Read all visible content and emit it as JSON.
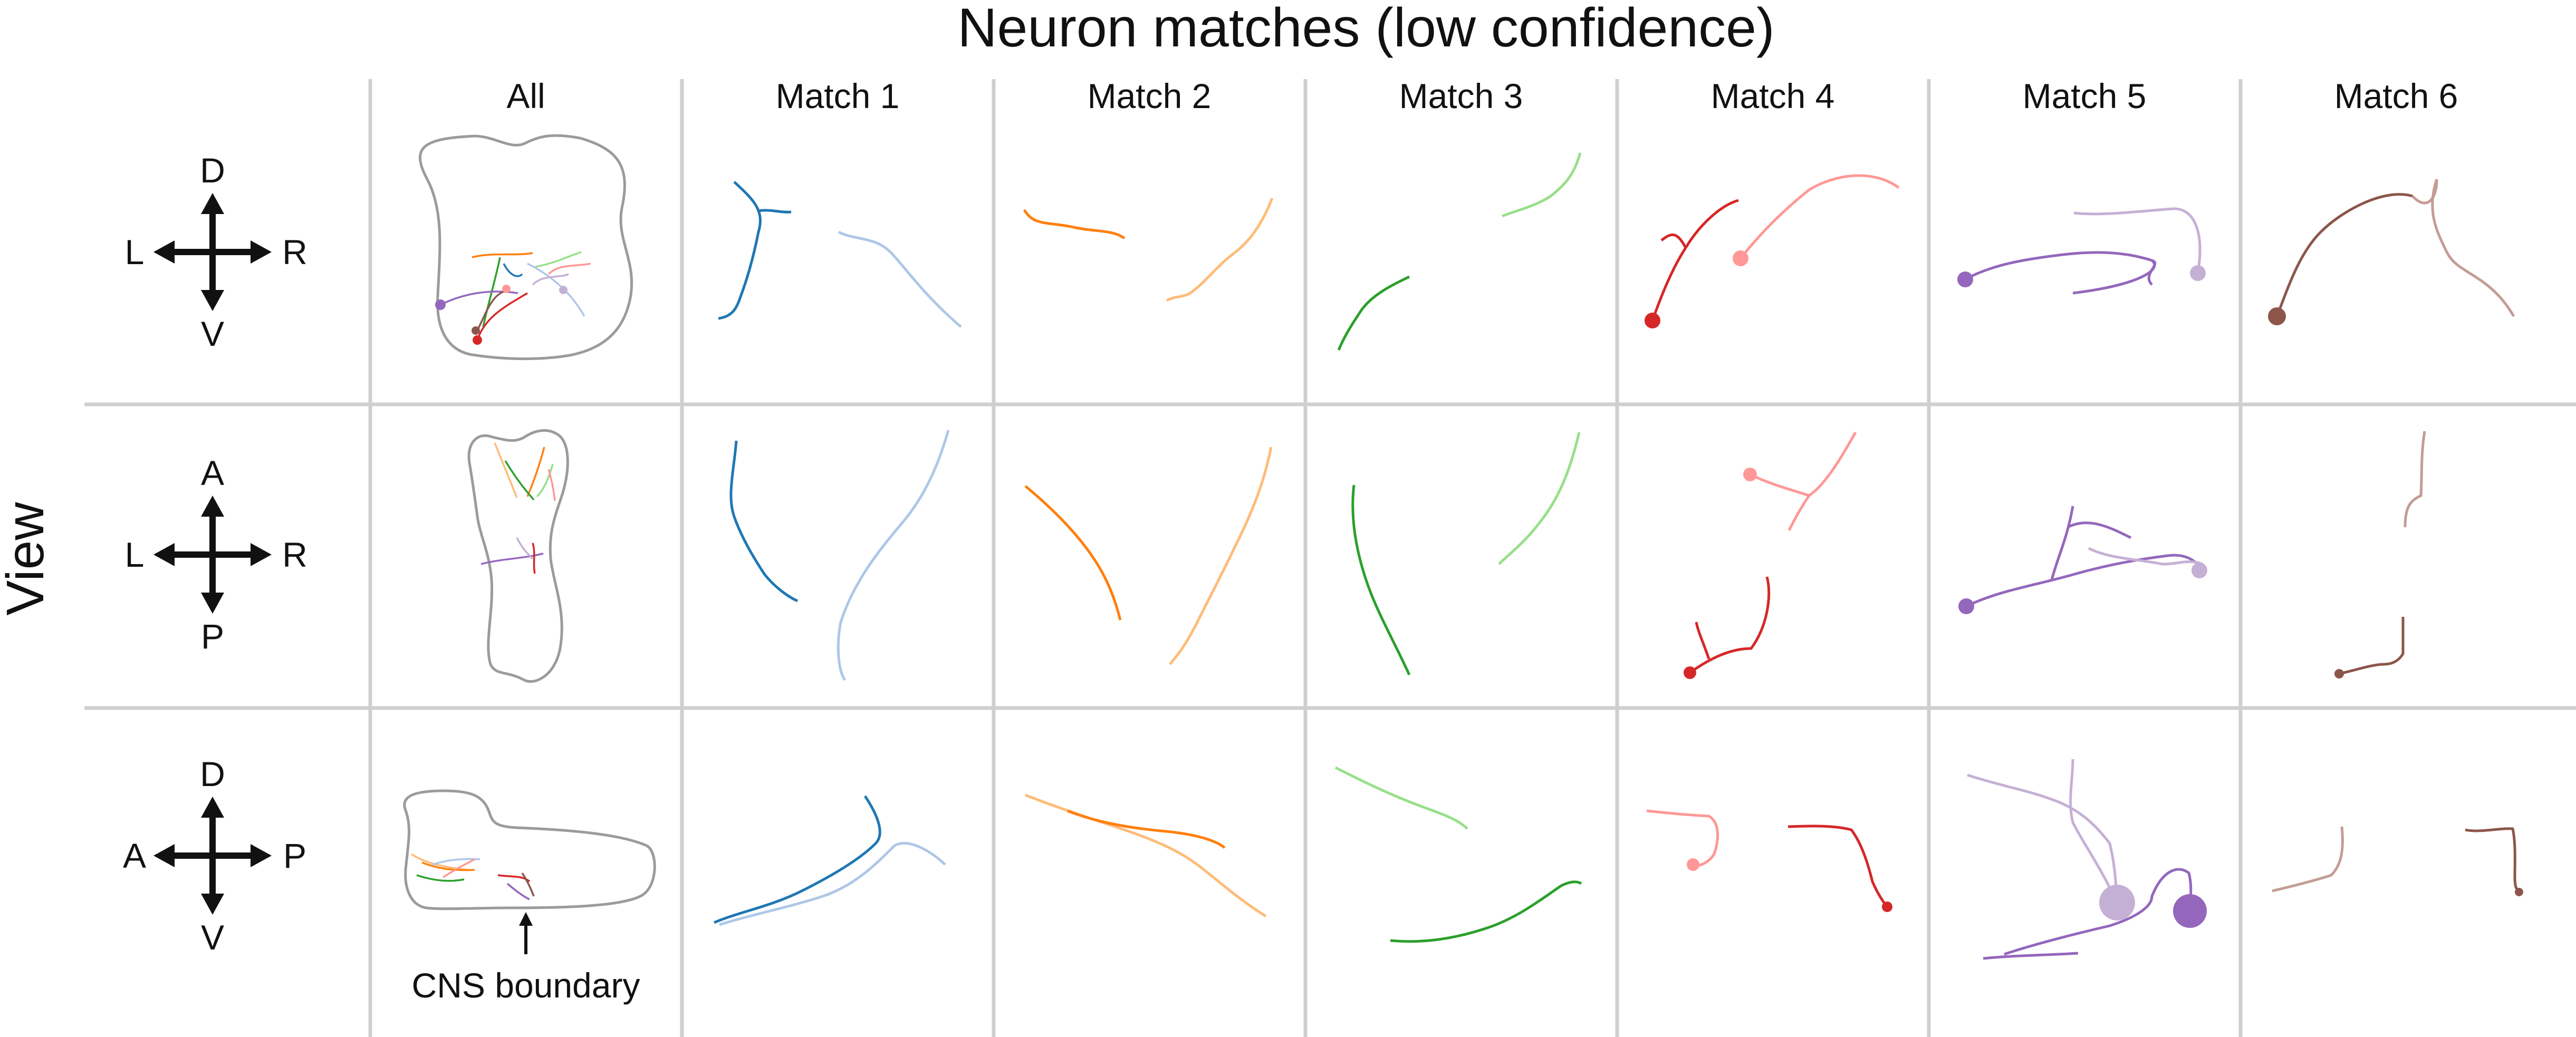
{
  "title": "Neuron matches (low confidence)",
  "row_axis_label": "View",
  "columns": [
    "All",
    "Match 1",
    "Match 2",
    "Match 3",
    "Match 4",
    "Match 5",
    "Match 6"
  ],
  "views": [
    {
      "up": "D",
      "down": "V",
      "left": "L",
      "right": "R"
    },
    {
      "up": "A",
      "down": "P",
      "left": "L",
      "right": "R"
    },
    {
      "up": "D",
      "down": "V",
      "left": "A",
      "right": "P"
    }
  ],
  "cns_boundary_label": "CNS boundary",
  "match_colors": [
    {
      "dark": "#1f77b4",
      "light": "#aec7e8"
    },
    {
      "dark": "#ff7f0e",
      "light": "#ffbb78"
    },
    {
      "dark": "#2ca02c",
      "light": "#98df8a"
    },
    {
      "dark": "#d62728",
      "light": "#ff9896"
    },
    {
      "dark": "#9467bd",
      "light": "#c5b0d5"
    },
    {
      "dark": "#8c564b",
      "light": "#c49c94"
    }
  ],
  "gridline_color": "#cfcfcf",
  "boundary_color": "#9b9b9b"
}
